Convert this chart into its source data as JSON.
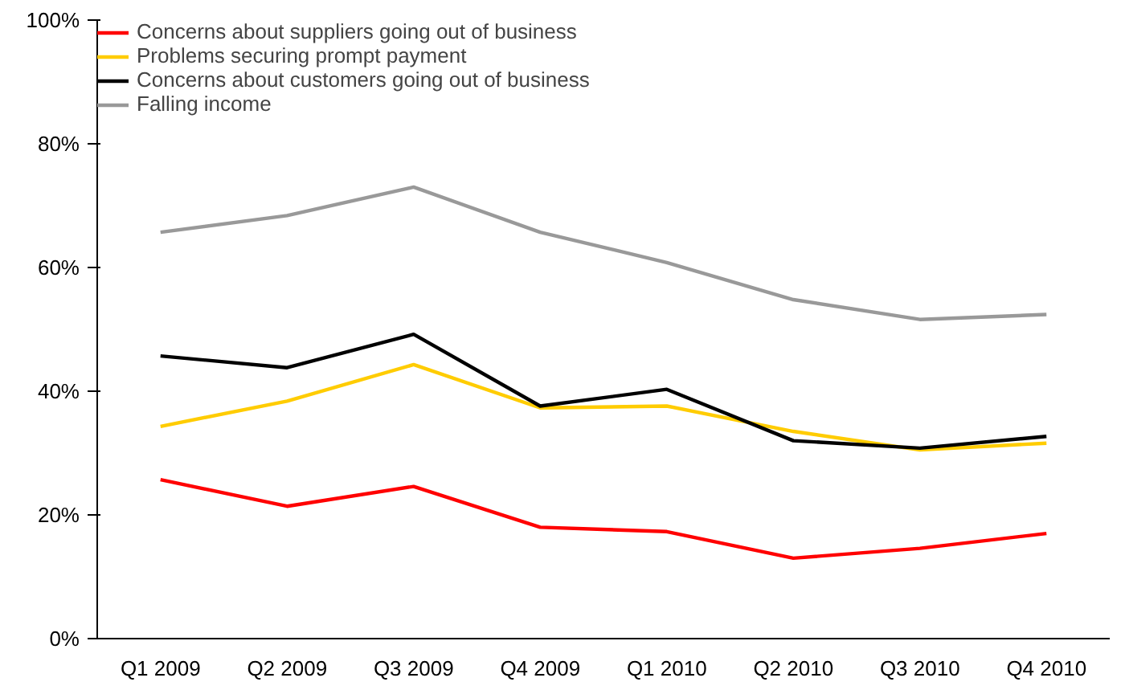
{
  "chart_data": {
    "type": "line",
    "categories": [
      "Q1 2009",
      "Q2 2009",
      "Q3 2009",
      "Q4 2009",
      "Q1 2010",
      "Q2 2010",
      "Q3 2010",
      "Q4 2010"
    ],
    "series": [
      {
        "name": "Concerns about suppliers going out of business",
        "color": "#ff0000",
        "values": [
          25.7,
          21.4,
          24.6,
          18,
          17.3,
          13,
          14.6,
          17
        ]
      },
      {
        "name": "Problems securing prompt payment",
        "color": "#ffcc00",
        "values": [
          34.3,
          38.4,
          44.3,
          37.3,
          37.6,
          33.5,
          30.5,
          31.6
        ]
      },
      {
        "name": "Concerns about customers going out of business",
        "color": "#000000",
        "values": [
          45.7,
          43.8,
          49.2,
          37.6,
          40.3,
          32,
          30.8,
          32.7
        ]
      },
      {
        "name": "Falling income",
        "color": "#999999",
        "values": [
          65.7,
          68.4,
          73,
          65.7,
          60.8,
          54.8,
          51.6,
          52.4
        ]
      }
    ],
    "ylim": [
      0,
      100
    ],
    "yticks": [
      {
        "value": 0,
        "label": "0%"
      },
      {
        "value": 20,
        "label": "20%"
      },
      {
        "value": 40,
        "label": "40%"
      },
      {
        "value": 60,
        "label": "60%"
      },
      {
        "value": 80,
        "label": "80%"
      },
      {
        "value": 100,
        "label": "100%"
      }
    ],
    "grid": false,
    "legend": "top left",
    "marker": "none",
    "line_style": "solid"
  }
}
